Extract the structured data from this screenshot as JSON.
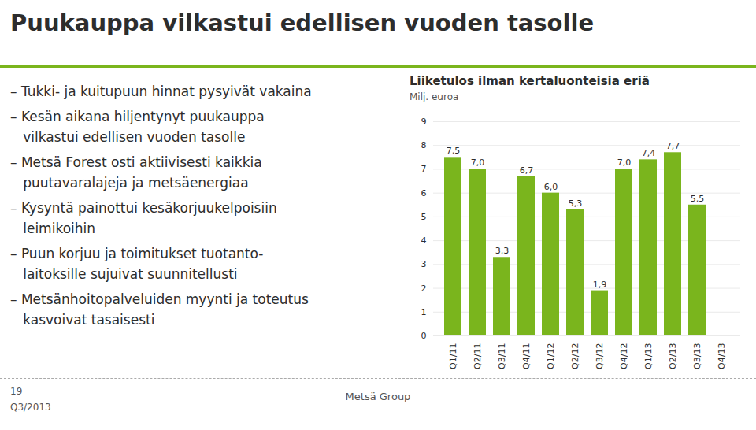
{
  "chart_data": {
    "type": "bar",
    "title": "Liiketulos ilman kertaluonteisia eriä",
    "subtitle": "Milj. euroa",
    "annotations": [
      "Puukauppa vilkastui edellisen vuoden tasolle",
      "– Tukki- ja kuitupuun hinnat pysyivät vakaina",
      "– Kesän aikana hiljentynyt puukauppa",
      "   vilkastui edellisen vuoden tasolle",
      "– Metsä Forest osti aktiivisesti kaikkia",
      "   puutavaralajeja ja metsäenergiaa",
      "– Kysyntä painottui kesäkorjuukelpoisiin",
      "   leimikoihin",
      "– Puun korjuu ja toimitukset tuotanto-",
      "   laitoksille sujuivat suunnitellusti",
      "– Metsänhoitopalveluiden myynti ja toteutus",
      "   kasvoivat tasaisesti"
    ],
    "footer": [
      "19",
      "Q3/2013",
      "Metsä Group"
    ],
    "categories": [
      "Q1/11",
      "Q2/11",
      "Q3/11",
      "Q4/11",
      "Q1/12",
      "Q2/12",
      "Q3/12",
      "Q4/12",
      "Q1/13",
      "Q2/13",
      "Q3/13",
      "Q4/13"
    ],
    "values": [
      7.5,
      7.0,
      3.3,
      6.7,
      6.0,
      5.3,
      1.9,
      7.0,
      7.4,
      7.7,
      5.5,
      null
    ],
    "value_labels": [
      "7,5",
      "7,0",
      "3,3",
      "6,7",
      "6,0",
      "5,3",
      "1,9",
      "7,0",
      "7,4",
      "7,7",
      "5,5",
      null
    ],
    "data_labels": true,
    "color": "#7ab51d",
    "ylim": [
      0,
      9
    ],
    "yticks": [
      0,
      1,
      2,
      3,
      4,
      5,
      6,
      7,
      8,
      9
    ],
    "grid": true
  }
}
